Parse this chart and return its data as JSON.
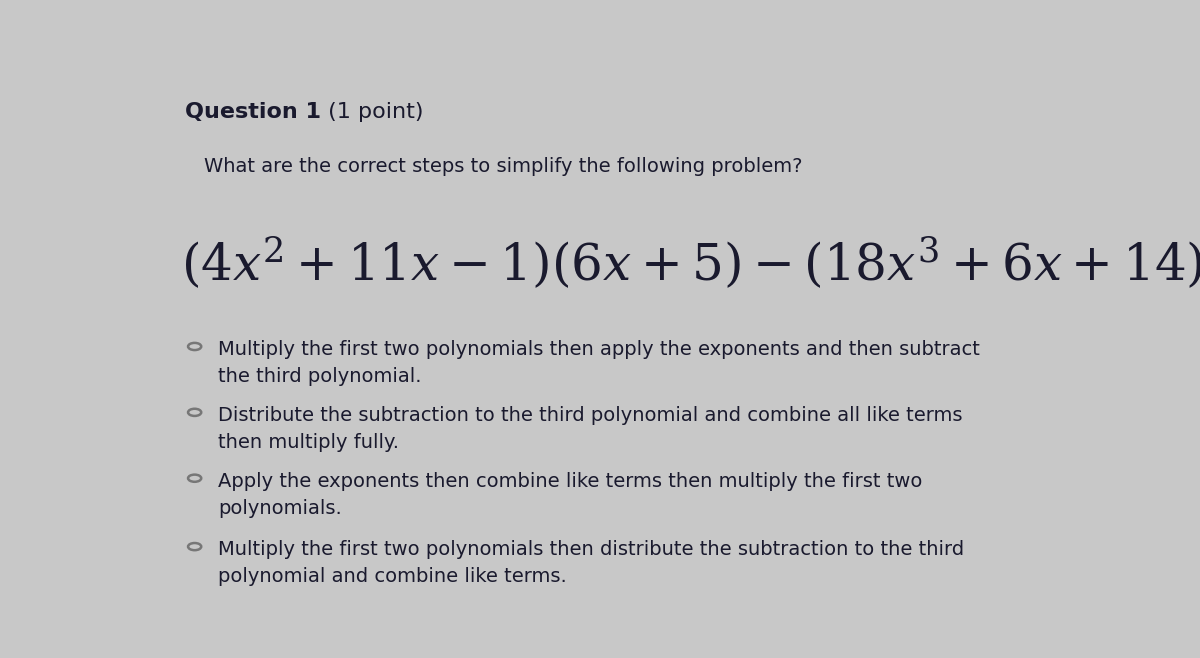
{
  "background_color": "#c8c8c8",
  "title_bold": "Question 1",
  "title_normal": " (1 point)",
  "subtitle": "What are the correct steps to simplify the following problem?",
  "math_expression": "$(4x^2 + 11x - 1)(6x + 5) - (18x^3 + 6x + 14)$",
  "options": [
    "Multiply the first two polynomials then apply the exponents and then subtract\nthe third polynomial.",
    "Distribute the subtraction to the third polynomial and combine all like terms\nthen multiply fully.",
    "Apply the exponents then combine like terms then multiply the first two\npolynomials.",
    "Multiply the first two polynomials then distribute the subtraction to the third\npolynomial and combine like terms."
  ],
  "text_color": "#1a1a2e",
  "circle_edge_color": "#777777",
  "title_fontsize": 16,
  "subtitle_fontsize": 14,
  "math_fontsize": 36,
  "option_fontsize": 14,
  "fig_width": 12.0,
  "fig_height": 6.58,
  "dpi": 100
}
